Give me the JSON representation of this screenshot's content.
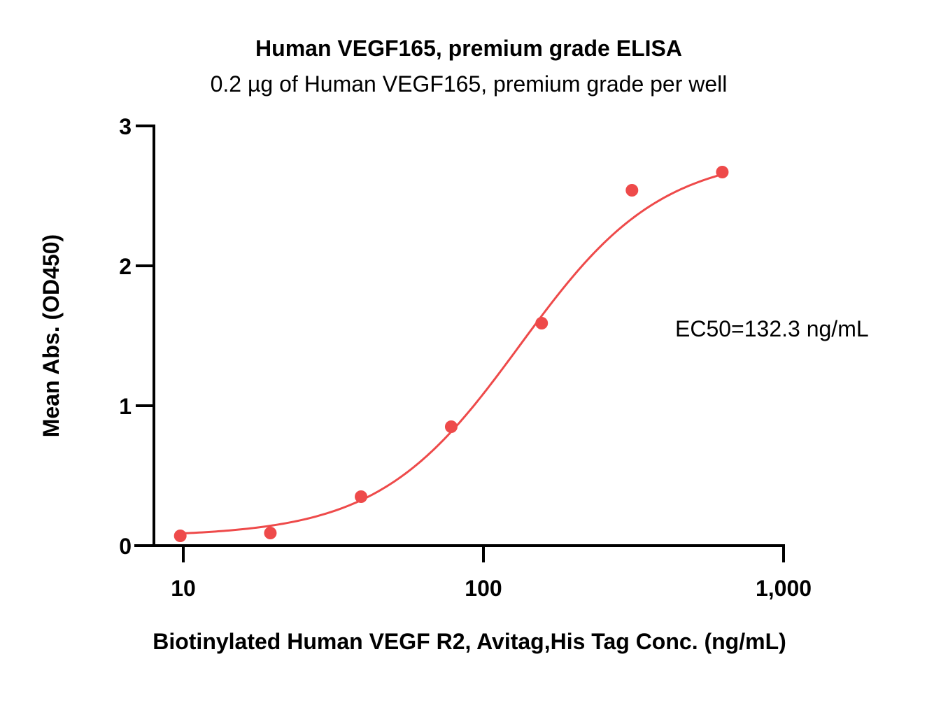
{
  "chart_data": {
    "type": "scatter",
    "title": "Human VEGF165, premium grade ELISA",
    "subtitle": "0.2 µg of Human VEGF165, premium grade per well",
    "xlabel": "Biotinylated Human VEGF R2, Avitag,His Tag Conc. (ng/mL)",
    "ylabel": "Mean Abs. (OD450)",
    "x_scale": "log",
    "xlim": [
      10,
      1000
    ],
    "ylim": [
      0,
      3
    ],
    "x_ticks": [
      10,
      100,
      1000
    ],
    "x_tick_labels": [
      "10",
      "100",
      "1,000"
    ],
    "y_ticks": [
      0,
      1,
      2,
      3
    ],
    "y_tick_labels": [
      "0",
      "1",
      "2",
      "3"
    ],
    "grid": false,
    "series": [
      {
        "points": [
          {
            "x": 9.77,
            "y": 0.07
          },
          {
            "x": 19.5,
            "y": 0.09
          },
          {
            "x": 39.1,
            "y": 0.35
          },
          {
            "x": 78.1,
            "y": 0.85
          },
          {
            "x": 156.3,
            "y": 1.59
          },
          {
            "x": 312.5,
            "y": 2.54
          },
          {
            "x": 625,
            "y": 2.67
          }
        ],
        "fit": {
          "model": "4PL",
          "bottom": 0.065,
          "top": 2.8,
          "ec50": 132.3,
          "hill": 1.85,
          "x_range": [
            9.77,
            625
          ]
        },
        "color": "#ee4a4a"
      }
    ],
    "annotations": [
      {
        "text": "EC50=132.3 ng/mL"
      }
    ],
    "axis_color": "#000000"
  }
}
